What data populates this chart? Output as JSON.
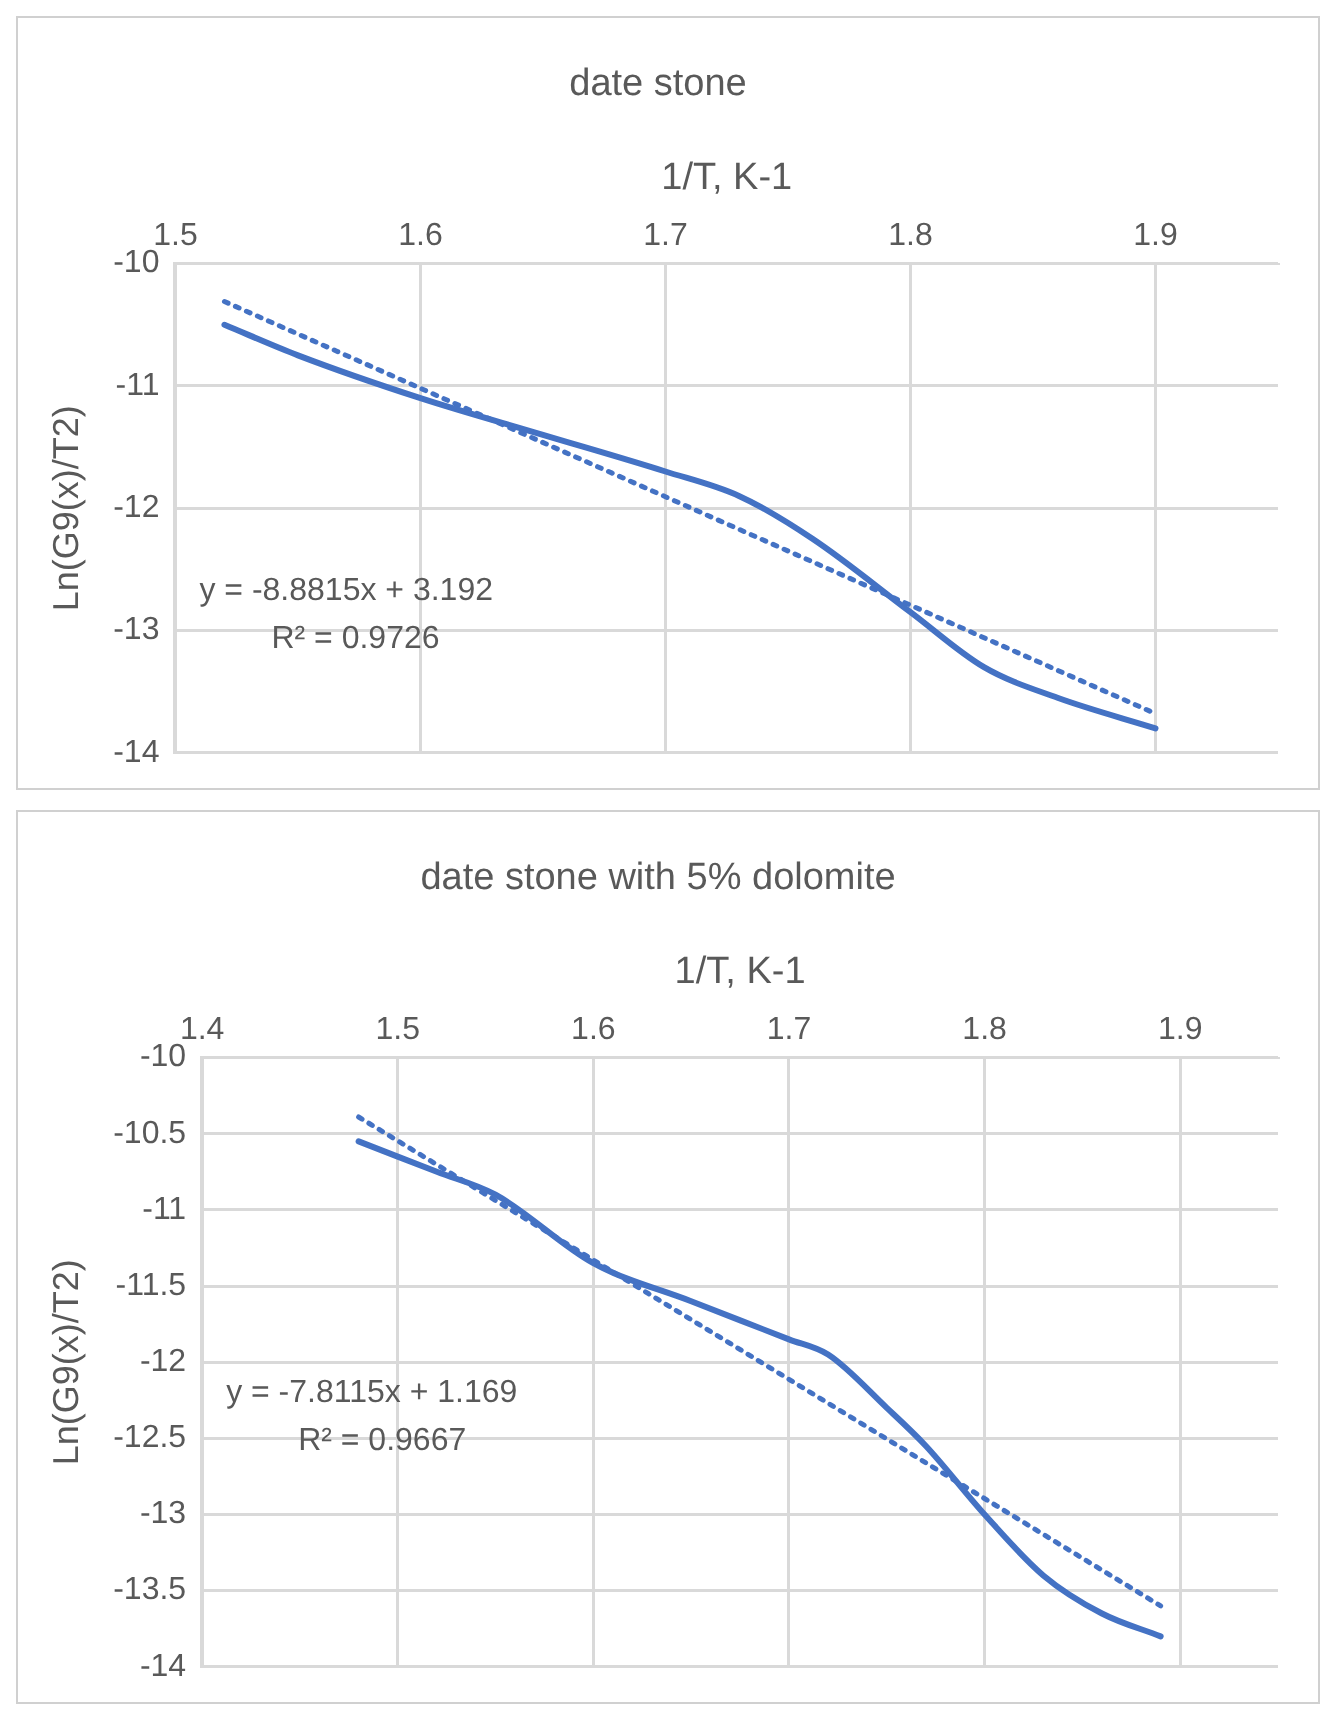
{
  "chart_data": [
    {
      "type": "line",
      "title": "date stone",
      "xlabel": "1/T, K-1",
      "ylabel": "Ln(G9(x)/T2)",
      "xlim": [
        1.5,
        1.95
      ],
      "xticks": [
        1.5,
        1.6,
        1.7,
        1.8,
        1.9
      ],
      "ylim": [
        -14,
        -10
      ],
      "yticks": [
        -14,
        -13,
        -12,
        -11,
        -10
      ],
      "grid": true,
      "legend": false,
      "series": [
        {
          "color": "#4472c4",
          "x": [
            1.52,
            1.55,
            1.6,
            1.65,
            1.7,
            1.73,
            1.76,
            1.8,
            1.83,
            1.86,
            1.9
          ],
          "values": [
            -10.5,
            -10.75,
            -11.1,
            -11.4,
            -11.7,
            -11.9,
            -12.25,
            -12.85,
            -13.3,
            -13.55,
            -13.8
          ]
        },
        {
          "color": "#4472c4",
          "line_style": "dotted",
          "x": [
            1.52,
            1.9
          ],
          "values": [
            -10.31,
            -13.68
          ]
        }
      ],
      "annotations": [
        "y = -8.8815x + 3.192",
        "R² = 0.9726"
      ]
    },
    {
      "type": "line",
      "title": "date stone with 5% dolomite",
      "xlabel": "1/T, K-1",
      "ylabel": "Ln(G9(x)/T2)",
      "xlim": [
        1.4,
        1.95
      ],
      "xticks": [
        1.4,
        1.5,
        1.6,
        1.7,
        1.8,
        1.9
      ],
      "ylim": [
        -14,
        -10
      ],
      "yticks": [
        -14,
        -13.5,
        -13,
        -12.5,
        -12,
        -11.5,
        -11,
        -10.5,
        -10
      ],
      "grid": true,
      "legend": false,
      "series": [
        {
          "color": "#4472c4",
          "x": [
            1.48,
            1.52,
            1.55,
            1.6,
            1.65,
            1.7,
            1.72,
            1.75,
            1.77,
            1.8,
            1.83,
            1.86,
            1.89
          ],
          "values": [
            -10.55,
            -10.75,
            -10.9,
            -11.35,
            -11.6,
            -11.85,
            -11.95,
            -12.3,
            -12.55,
            -13.0,
            -13.4,
            -13.65,
            -13.8
          ]
        },
        {
          "color": "#4472c4",
          "line_style": "dotted",
          "x": [
            1.48,
            1.89
          ],
          "values": [
            -10.39,
            -13.6
          ]
        }
      ],
      "annotations": [
        "y = -7.8115x + 1.169",
        "R² = 0.9667"
      ]
    }
  ]
}
